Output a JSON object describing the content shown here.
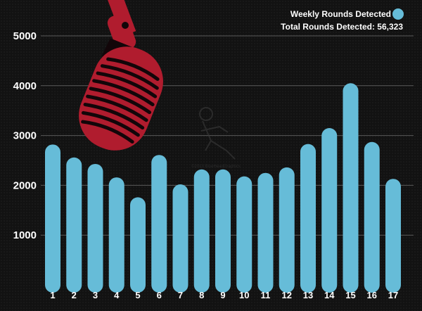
{
  "legend": {
    "series_label": "Weekly Rounds Detected",
    "total_label": "Total Rounds Detected: 56,323"
  },
  "watermark": {
    "text": "©2013 BlueHeadGraphics"
  },
  "colors": {
    "bar": "#66bcd8",
    "background": "#121212",
    "grid": "#5a5a5a",
    "microphone": "#b01c2e",
    "microphone_dark": "#120609"
  },
  "chart_data": {
    "type": "bar",
    "categories": [
      "1",
      "2",
      "3",
      "4",
      "5",
      "6",
      "7",
      "8",
      "9",
      "10",
      "11",
      "12",
      "13",
      "14",
      "15",
      "16",
      "17"
    ],
    "series": [
      {
        "name": "Weekly Rounds Detected",
        "values": [
          2820,
          2560,
          2430,
          2160,
          1760,
          2610,
          2020,
          2320,
          2320,
          2180,
          2250,
          2360,
          2830,
          3150,
          4050,
          2870,
          2130
        ]
      }
    ],
    "y_ticks": [
      1000,
      2000,
      3000,
      4000,
      5000
    ],
    "ylim": [
      0,
      5400
    ],
    "grid": true,
    "legend_position": "top-right",
    "total": "56,323"
  }
}
